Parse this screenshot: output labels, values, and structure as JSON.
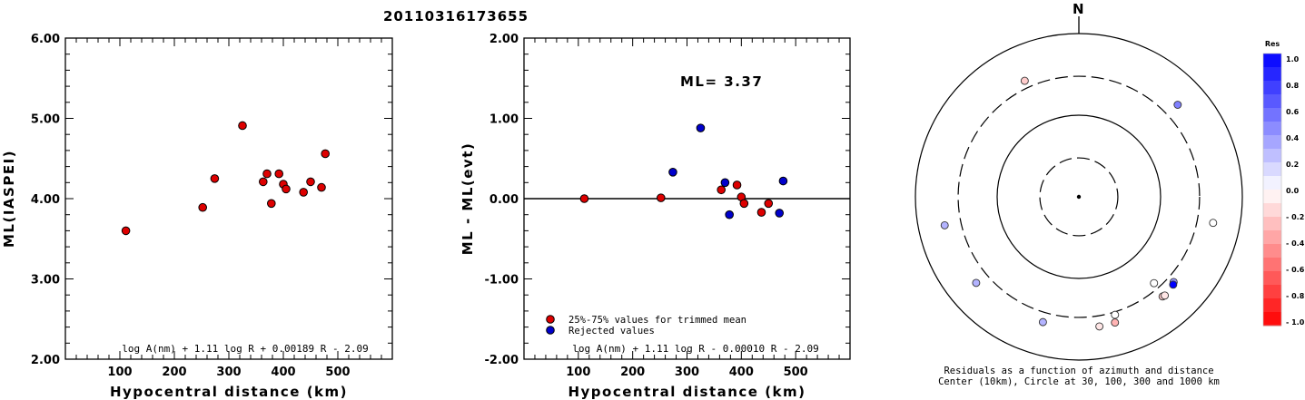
{
  "chart_data": [
    {
      "id": "left",
      "type": "scatter",
      "title": "20110316173655",
      "xlabel": "Hypocentral distance (km)",
      "ylabel": "ML(IASPEI)",
      "xlim": [
        0,
        600
      ],
      "ylim": [
        2.0,
        6.0
      ],
      "xticks": [
        "100",
        "200",
        "300",
        "400",
        "500"
      ],
      "yticks": [
        "2.00",
        "3.00",
        "4.00",
        "5.00",
        "6.00"
      ],
      "formula": "log A(nm) + 1.11 log R + 0.00189 R - 2.09",
      "marker_color": "#dd0000",
      "points": [
        {
          "x": 111,
          "y": 3.6
        },
        {
          "x": 252,
          "y": 3.89
        },
        {
          "x": 274,
          "y": 4.25
        },
        {
          "x": 325,
          "y": 4.91
        },
        {
          "x": 363,
          "y": 4.21
        },
        {
          "x": 370,
          "y": 4.31
        },
        {
          "x": 378,
          "y": 3.94
        },
        {
          "x": 392,
          "y": 4.31
        },
        {
          "x": 400,
          "y": 4.18
        },
        {
          "x": 405,
          "y": 4.12
        },
        {
          "x": 437,
          "y": 4.08
        },
        {
          "x": 450,
          "y": 4.21
        },
        {
          "x": 470,
          "y": 4.14
        },
        {
          "x": 477,
          "y": 4.56
        }
      ]
    },
    {
      "id": "middle",
      "type": "scatter",
      "xlabel": "Hypocentral distance (km)",
      "ylabel": "ML - ML(evt)",
      "xlim": [
        0,
        600
      ],
      "ylim": [
        -2.0,
        2.0
      ],
      "xticks": [
        "100",
        "200",
        "300",
        "400",
        "500"
      ],
      "yticks": [
        "-2.00",
        "-1.00",
        "0.00",
        "1.00",
        "2.00"
      ],
      "annotation": "ML= 3.37",
      "formula": "log A(nm) + 1.11 log R - 0.00010 R - 2.09",
      "legend": [
        {
          "label": "25%-75% values for trimmed mean",
          "color": "#dd0000"
        },
        {
          "label": "Rejected values",
          "color": "#0000cc"
        }
      ],
      "points": [
        {
          "x": 111,
          "y": 0.0,
          "group": 0
        },
        {
          "x": 252,
          "y": 0.01,
          "group": 0
        },
        {
          "x": 274,
          "y": 0.33,
          "group": 1
        },
        {
          "x": 325,
          "y": 0.88,
          "group": 1
        },
        {
          "x": 363,
          "y": 0.11,
          "group": 0
        },
        {
          "x": 370,
          "y": 0.2,
          "group": 1
        },
        {
          "x": 378,
          "y": -0.2,
          "group": 1
        },
        {
          "x": 392,
          "y": 0.17,
          "group": 0
        },
        {
          "x": 400,
          "y": 0.02,
          "group": 0
        },
        {
          "x": 405,
          "y": -0.06,
          "group": 0
        },
        {
          "x": 437,
          "y": -0.17,
          "group": 0
        },
        {
          "x": 450,
          "y": -0.06,
          "group": 0
        },
        {
          "x": 470,
          "y": -0.18,
          "group": 1
        },
        {
          "x": 477,
          "y": 0.22,
          "group": 1
        }
      ]
    },
    {
      "id": "polar",
      "type": "scatter",
      "north_label": "N",
      "caption_line1": "Residuals as a function of azimuth and distance",
      "caption_line2": "Center (10km), Circle at 30, 100, 300 and 1000 km",
      "circles": [
        {
          "km": 30,
          "style": "dashed"
        },
        {
          "km": 100,
          "style": "solid"
        },
        {
          "km": 300,
          "style": "dashed"
        },
        {
          "km": 1000,
          "style": "solid"
        }
      ],
      "points": [
        {
          "azimuth": 335,
          "distance_km": 370,
          "residual": -0.2
        },
        {
          "azimuth": 47,
          "distance_km": 450,
          "residual": 0.5
        },
        {
          "azimuth": 258,
          "distance_km": 477,
          "residual": 0.3
        },
        {
          "azimuth": 101,
          "distance_km": 471,
          "residual": 0.0
        },
        {
          "azimuth": 139,
          "distance_km": 252,
          "residual": 0.0
        },
        {
          "azimuth": 230,
          "distance_km": 437,
          "residual": 0.3
        },
        {
          "azimuth": 132,
          "distance_km": 363,
          "residual": 0.4
        },
        {
          "azimuth": 133,
          "distance_km": 378,
          "residual": 1.0
        },
        {
          "azimuth": 140,
          "distance_km": 392,
          "residual": -0.2
        },
        {
          "azimuth": 139,
          "distance_km": 400,
          "residual": -0.1
        },
        {
          "azimuth": 163,
          "distance_km": 325,
          "residual": 0.0
        },
        {
          "azimuth": 171,
          "distance_km": 405,
          "residual": -0.1
        },
        {
          "azimuth": 164,
          "distance_km": 400,
          "residual": -0.3
        },
        {
          "azimuth": 196,
          "distance_km": 395,
          "residual": 0.3
        }
      ],
      "colorbar": {
        "title": "Res",
        "labels": [
          "1.0",
          "0.8",
          "0.6",
          "0.4",
          "0.2",
          "0.0",
          "- 0.2",
          "- 0.4",
          "- 0.6",
          "- 0.8",
          "- 1.0"
        ],
        "min": -1.0,
        "max": 1.0
      }
    }
  ]
}
